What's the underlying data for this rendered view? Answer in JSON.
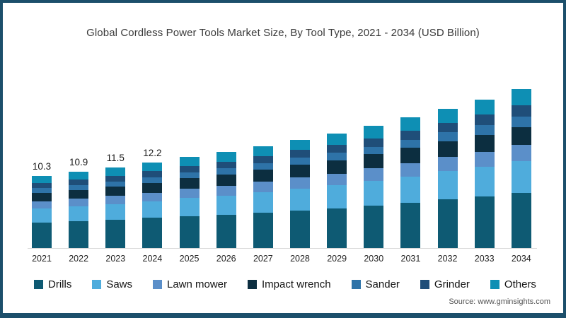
{
  "title": "Global Cordless Power Tools Market Size, By Tool Type, 2021 - 2034 (USD Billion)",
  "source": "Source: www.gminsights.com",
  "frame": {
    "border_color": "#1C4F6B",
    "background": "#ffffff"
  },
  "chart_data": {
    "type": "bar",
    "stacked": true,
    "title": "Global Cordless Power Tools Market Size, By Tool Type, 2021 - 2034 (USD Billion)",
    "xlabel": "",
    "ylabel": "",
    "ylim": [
      0,
      24
    ],
    "grid": false,
    "legend_position": "bottom",
    "categories": [
      "2021",
      "2022",
      "2023",
      "2024",
      "2025",
      "2026",
      "2027",
      "2028",
      "2029",
      "2030",
      "2031",
      "2032",
      "2033",
      "2034"
    ],
    "series": [
      {
        "name": "Drills",
        "color": "#0E5A73",
        "values": [
          3.6,
          3.8,
          4.0,
          4.3,
          4.6,
          4.8,
          5.1,
          5.4,
          5.7,
          6.1,
          6.5,
          7.0,
          7.4,
          7.9
        ]
      },
      {
        "name": "Saws",
        "color": "#4FACDC",
        "values": [
          2.1,
          2.2,
          2.3,
          2.4,
          2.6,
          2.7,
          2.9,
          3.1,
          3.3,
          3.5,
          3.7,
          4.0,
          4.2,
          4.5
        ]
      },
      {
        "name": "Lawn mower",
        "color": "#5B8FC9",
        "values": [
          1.0,
          1.1,
          1.2,
          1.2,
          1.3,
          1.4,
          1.5,
          1.6,
          1.6,
          1.8,
          1.9,
          2.0,
          2.1,
          2.3
        ]
      },
      {
        "name": "Impact wrench",
        "color": "#0C2E40",
        "values": [
          1.2,
          1.2,
          1.3,
          1.4,
          1.5,
          1.6,
          1.7,
          1.8,
          1.9,
          2.0,
          2.2,
          2.3,
          2.5,
          2.6
        ]
      },
      {
        "name": "Sander",
        "color": "#2E73A8",
        "values": [
          0.7,
          0.7,
          0.7,
          0.8,
          0.8,
          0.9,
          0.9,
          1.0,
          1.1,
          1.1,
          1.2,
          1.3,
          1.4,
          1.5
        ]
      },
      {
        "name": "Grinder",
        "color": "#1F4E79",
        "values": [
          0.7,
          0.8,
          0.8,
          0.9,
          0.9,
          0.9,
          1.0,
          1.1,
          1.2,
          1.2,
          1.3,
          1.3,
          1.5,
          1.6
        ]
      },
      {
        "name": "Others",
        "color": "#0E8FB4",
        "values": [
          1.0,
          1.1,
          1.2,
          1.2,
          1.3,
          1.4,
          1.4,
          1.5,
          1.6,
          1.8,
          1.9,
          2.0,
          2.1,
          2.3
        ]
      }
    ],
    "totals": [
      10.3,
      10.9,
      11.5,
      12.2,
      13.0,
      13.7,
      14.5,
      15.5,
      16.4,
      17.5,
      18.7,
      19.9,
      21.2,
      22.7
    ],
    "bar_labels": [
      "10.3",
      "10.9",
      "11.5",
      "12.2",
      "",
      "",
      "",
      "",
      "",
      "",
      "",
      "",
      "",
      ""
    ]
  }
}
